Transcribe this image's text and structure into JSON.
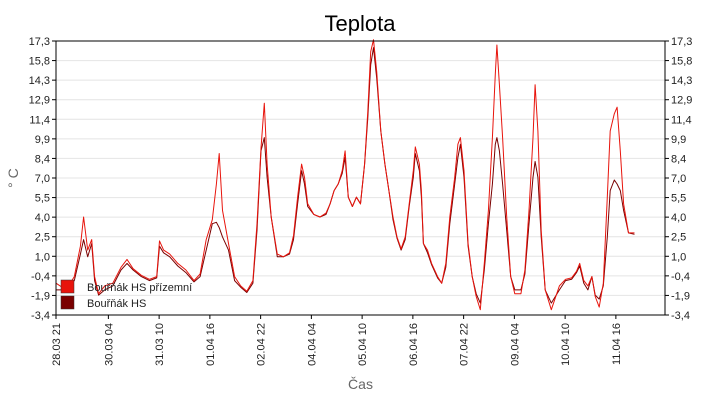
{
  "chart_data": {
    "type": "line",
    "title": "Teplota",
    "xlabel": "Čas",
    "ylabel": "° C",
    "ylim": [
      -3.4,
      17.3
    ],
    "yticks": [
      "17,3",
      "15,8",
      "14,3",
      "12,9",
      "11,4",
      "9,9",
      "8,4",
      "7,0",
      "5,5",
      "4,0",
      "2,5",
      "1,0",
      "-0,4",
      "-1,9",
      "-3,4"
    ],
    "x_range_days": [
      0,
      15
    ],
    "x_tick_labels": [
      "28.03 21",
      "30.03 04",
      "31.03 10",
      "01.04 16",
      "02.04 22",
      "04.04 04",
      "05.04 10",
      "06.04 16",
      "07.04 22",
      "09.04 04",
      "10.04 10",
      "11.04 16"
    ],
    "x_tick_days": [
      0,
      1.29,
      2.54,
      3.79,
      5.04,
      6.29,
      7.54,
      8.79,
      10.04,
      11.29,
      12.54,
      13.79
    ],
    "legend_position": "bottom-left",
    "grid": true,
    "series": [
      {
        "name": "Bouřňák HS přízemní",
        "color": "#e8140c",
        "points": [
          [
            0,
            -1.0
          ],
          [
            0.25,
            -1.5
          ],
          [
            0.45,
            -0.5
          ],
          [
            0.6,
            1.8
          ],
          [
            0.68,
            4.0
          ],
          [
            0.78,
            1.5
          ],
          [
            0.88,
            2.3
          ],
          [
            0.95,
            -0.5
          ],
          [
            1.05,
            -1.8
          ],
          [
            1.2,
            -1.2
          ],
          [
            1.4,
            -1.0
          ],
          [
            1.6,
            0.2
          ],
          [
            1.75,
            0.8
          ],
          [
            1.9,
            0.1
          ],
          [
            2.1,
            -0.4
          ],
          [
            2.3,
            -0.7
          ],
          [
            2.48,
            -0.5
          ],
          [
            2.55,
            2.2
          ],
          [
            2.65,
            1.5
          ],
          [
            2.8,
            1.2
          ],
          [
            3.0,
            0.5
          ],
          [
            3.2,
            0.0
          ],
          [
            3.4,
            -0.8
          ],
          [
            3.55,
            -0.3
          ],
          [
            3.7,
            2.3
          ],
          [
            3.85,
            3.8
          ],
          [
            3.95,
            6.5
          ],
          [
            4.02,
            8.8
          ],
          [
            4.1,
            4.5
          ],
          [
            4.25,
            2.0
          ],
          [
            4.4,
            -0.5
          ],
          [
            4.55,
            -1.2
          ],
          [
            4.7,
            -1.6
          ],
          [
            4.85,
            -0.8
          ],
          [
            4.95,
            3.5
          ],
          [
            5.05,
            9.2
          ],
          [
            5.13,
            12.6
          ],
          [
            5.2,
            8.0
          ],
          [
            5.3,
            4.0
          ],
          [
            5.45,
            1.2
          ],
          [
            5.6,
            1.0
          ],
          [
            5.75,
            1.3
          ],
          [
            5.85,
            2.6
          ],
          [
            5.95,
            5.5
          ],
          [
            6.05,
            8.0
          ],
          [
            6.12,
            7.0
          ],
          [
            6.2,
            5.0
          ],
          [
            6.35,
            4.2
          ],
          [
            6.5,
            4.0
          ],
          [
            6.65,
            4.3
          ],
          [
            6.75,
            5.0
          ],
          [
            6.85,
            6.0
          ],
          [
            6.95,
            6.5
          ],
          [
            7.05,
            7.5
          ],
          [
            7.12,
            9.0
          ],
          [
            7.2,
            5.5
          ],
          [
            7.3,
            4.8
          ],
          [
            7.4,
            5.5
          ],
          [
            7.5,
            5.0
          ],
          [
            7.6,
            8.0
          ],
          [
            7.68,
            12.0
          ],
          [
            7.75,
            16.5
          ],
          [
            7.82,
            17.4
          ],
          [
            7.9,
            15.0
          ],
          [
            8.0,
            10.5
          ],
          [
            8.1,
            8.0
          ],
          [
            8.2,
            6.0
          ],
          [
            8.3,
            4.0
          ],
          [
            8.4,
            2.5
          ],
          [
            8.5,
            1.6
          ],
          [
            8.6,
            2.5
          ],
          [
            8.7,
            5.0
          ],
          [
            8.8,
            7.5
          ],
          [
            8.85,
            9.3
          ],
          [
            8.95,
            8.0
          ],
          [
            9.0,
            6.0
          ],
          [
            9.05,
            2.0
          ],
          [
            9.15,
            1.5
          ],
          [
            9.25,
            0.5
          ],
          [
            9.4,
            -0.5
          ],
          [
            9.5,
            -1.0
          ],
          [
            9.6,
            0.5
          ],
          [
            9.7,
            4.0
          ],
          [
            9.82,
            7.0
          ],
          [
            9.9,
            9.5
          ],
          [
            9.96,
            10.0
          ],
          [
            10.05,
            7.5
          ],
          [
            10.15,
            2.0
          ],
          [
            10.25,
            -0.5
          ],
          [
            10.35,
            -2.0
          ],
          [
            10.45,
            -3.0
          ],
          [
            10.55,
            0.5
          ],
          [
            10.65,
            4.5
          ],
          [
            10.75,
            10.0
          ],
          [
            10.82,
            14.8
          ],
          [
            10.86,
            17.0
          ],
          [
            10.92,
            14.0
          ],
          [
            11.0,
            10.0
          ],
          [
            11.1,
            4.0
          ],
          [
            11.2,
            -0.5
          ],
          [
            11.3,
            -1.8
          ],
          [
            11.45,
            -1.8
          ],
          [
            11.55,
            0.0
          ],
          [
            11.65,
            4.5
          ],
          [
            11.75,
            10.0
          ],
          [
            11.8,
            14.0
          ],
          [
            11.87,
            10.5
          ],
          [
            11.95,
            3.0
          ],
          [
            12.05,
            -1.5
          ],
          [
            12.2,
            -3.0
          ],
          [
            12.4,
            -1.2
          ],
          [
            12.55,
            -0.7
          ],
          [
            12.7,
            -0.6
          ],
          [
            12.82,
            -0.1
          ],
          [
            12.9,
            0.5
          ],
          [
            13.0,
            -0.8
          ],
          [
            13.1,
            -1.2
          ],
          [
            13.2,
            -0.5
          ],
          [
            13.28,
            -2.0
          ],
          [
            13.38,
            -2.8
          ],
          [
            13.48,
            -1.0
          ],
          [
            13.58,
            5.5
          ],
          [
            13.65,
            10.5
          ],
          [
            13.75,
            11.8
          ],
          [
            13.82,
            12.3
          ],
          [
            13.9,
            9.0
          ],
          [
            13.98,
            5.0
          ],
          [
            14.1,
            2.8
          ],
          [
            14.25,
            2.8
          ]
        ]
      },
      {
        "name": "Bouřňák HS",
        "color": "#7a0000",
        "points": [
          [
            0,
            -1.5
          ],
          [
            0.25,
            -1.5
          ],
          [
            0.45,
            -0.8
          ],
          [
            0.6,
            1.2
          ],
          [
            0.68,
            2.3
          ],
          [
            0.78,
            1.0
          ],
          [
            0.88,
            2.0
          ],
          [
            0.95,
            -0.8
          ],
          [
            1.05,
            -1.9
          ],
          [
            1.2,
            -1.5
          ],
          [
            1.4,
            -1.2
          ],
          [
            1.6,
            0.0
          ],
          [
            1.75,
            0.5
          ],
          [
            1.9,
            0.0
          ],
          [
            2.1,
            -0.5
          ],
          [
            2.3,
            -0.8
          ],
          [
            2.48,
            -0.6
          ],
          [
            2.55,
            1.8
          ],
          [
            2.65,
            1.3
          ],
          [
            2.8,
            1.0
          ],
          [
            3.0,
            0.3
          ],
          [
            3.2,
            -0.2
          ],
          [
            3.4,
            -0.9
          ],
          [
            3.55,
            -0.5
          ],
          [
            3.7,
            1.5
          ],
          [
            3.85,
            3.5
          ],
          [
            3.95,
            3.6
          ],
          [
            4.02,
            3.2
          ],
          [
            4.1,
            2.5
          ],
          [
            4.25,
            1.5
          ],
          [
            4.4,
            -0.8
          ],
          [
            4.55,
            -1.3
          ],
          [
            4.7,
            -1.7
          ],
          [
            4.85,
            -1.0
          ],
          [
            4.95,
            3.0
          ],
          [
            5.05,
            9.0
          ],
          [
            5.13,
            10.0
          ],
          [
            5.2,
            7.0
          ],
          [
            5.3,
            4.0
          ],
          [
            5.45,
            1.0
          ],
          [
            5.6,
            1.0
          ],
          [
            5.75,
            1.2
          ],
          [
            5.85,
            2.3
          ],
          [
            5.95,
            5.0
          ],
          [
            6.05,
            7.5
          ],
          [
            6.12,
            6.5
          ],
          [
            6.2,
            4.8
          ],
          [
            6.35,
            4.2
          ],
          [
            6.5,
            4.0
          ],
          [
            6.65,
            4.2
          ],
          [
            6.75,
            5.0
          ],
          [
            6.85,
            6.0
          ],
          [
            6.95,
            6.5
          ],
          [
            7.05,
            7.3
          ],
          [
            7.12,
            8.5
          ],
          [
            7.2,
            5.5
          ],
          [
            7.3,
            4.8
          ],
          [
            7.4,
            5.5
          ],
          [
            7.5,
            5.0
          ],
          [
            7.6,
            8.0
          ],
          [
            7.68,
            11.5
          ],
          [
            7.75,
            15.5
          ],
          [
            7.82,
            16.8
          ],
          [
            7.9,
            14.5
          ],
          [
            8.0,
            10.5
          ],
          [
            8.1,
            8.0
          ],
          [
            8.2,
            6.0
          ],
          [
            8.3,
            3.8
          ],
          [
            8.4,
            2.4
          ],
          [
            8.5,
            1.5
          ],
          [
            8.6,
            2.3
          ],
          [
            8.7,
            4.8
          ],
          [
            8.8,
            7.0
          ],
          [
            8.85,
            8.8
          ],
          [
            8.95,
            7.5
          ],
          [
            9.0,
            5.5
          ],
          [
            9.05,
            2.0
          ],
          [
            9.15,
            1.3
          ],
          [
            9.25,
            0.4
          ],
          [
            9.4,
            -0.6
          ],
          [
            9.5,
            -1.0
          ],
          [
            9.6,
            0.2
          ],
          [
            9.7,
            3.5
          ],
          [
            9.82,
            6.5
          ],
          [
            9.9,
            8.5
          ],
          [
            9.96,
            9.5
          ],
          [
            10.05,
            7.0
          ],
          [
            10.15,
            1.8
          ],
          [
            10.25,
            -0.5
          ],
          [
            10.35,
            -1.8
          ],
          [
            10.45,
            -2.5
          ],
          [
            10.55,
            0.0
          ],
          [
            10.65,
            3.5
          ],
          [
            10.75,
            6.5
          ],
          [
            10.82,
            9.5
          ],
          [
            10.86,
            10.0
          ],
          [
            10.92,
            9.0
          ],
          [
            11.0,
            6.5
          ],
          [
            11.1,
            3.0
          ],
          [
            11.2,
            -0.5
          ],
          [
            11.3,
            -1.5
          ],
          [
            11.45,
            -1.5
          ],
          [
            11.55,
            -0.3
          ],
          [
            11.65,
            3.5
          ],
          [
            11.75,
            7.0
          ],
          [
            11.8,
            8.2
          ],
          [
            11.87,
            7.0
          ],
          [
            11.95,
            2.5
          ],
          [
            12.05,
            -1.5
          ],
          [
            12.2,
            -2.5
          ],
          [
            12.4,
            -1.5
          ],
          [
            12.55,
            -0.8
          ],
          [
            12.7,
            -0.7
          ],
          [
            12.82,
            -0.2
          ],
          [
            12.9,
            0.3
          ],
          [
            13.0,
            -1.0
          ],
          [
            13.1,
            -1.5
          ],
          [
            13.2,
            -0.5
          ],
          [
            13.28,
            -1.9
          ],
          [
            13.38,
            -2.2
          ],
          [
            13.48,
            -1.2
          ],
          [
            13.58,
            2.5
          ],
          [
            13.65,
            6.0
          ],
          [
            13.75,
            6.8
          ],
          [
            13.82,
            6.5
          ],
          [
            13.9,
            6.0
          ],
          [
            13.98,
            4.5
          ],
          [
            14.1,
            2.8
          ],
          [
            14.25,
            2.7
          ]
        ]
      }
    ]
  }
}
